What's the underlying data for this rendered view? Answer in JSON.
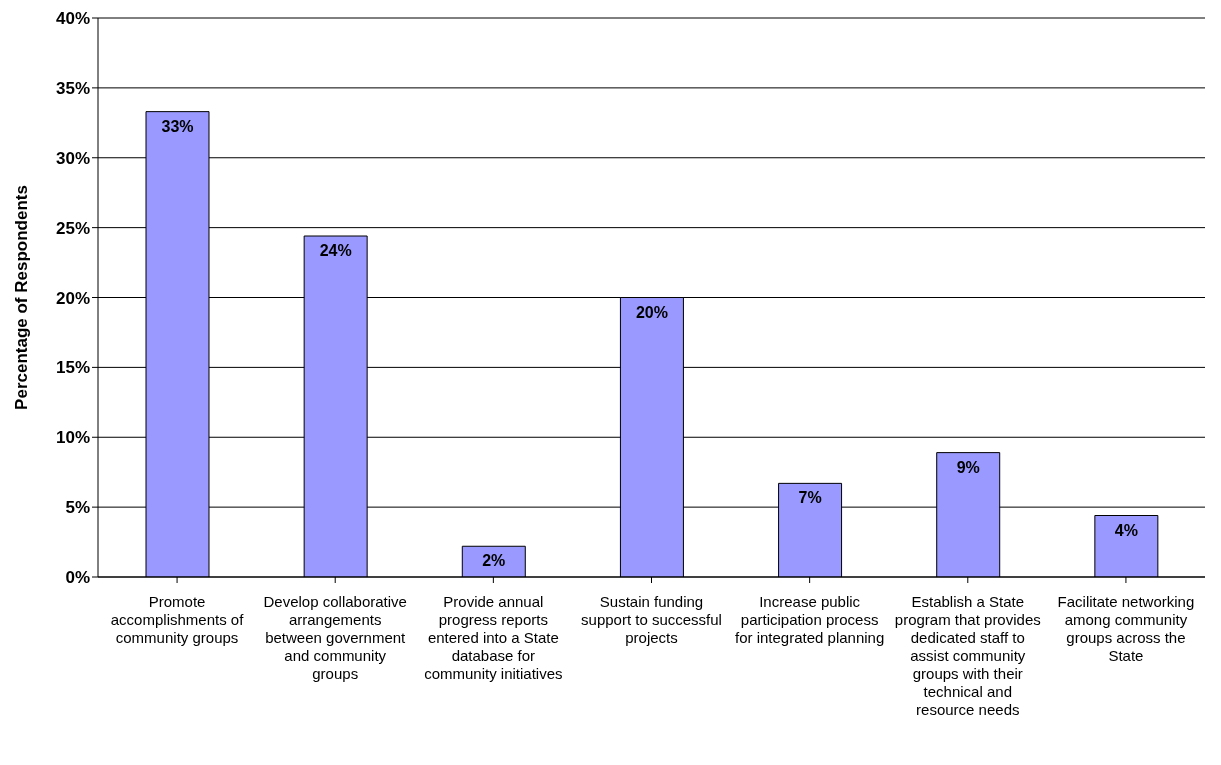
{
  "chart_data": {
    "type": "bar",
    "ylabel": "Percentage of Respondents",
    "categories": [
      "Promote accomplishments of community groups",
      "Develop collaborative arrangements between government and community groups",
      "Provide annual progress reports entered into a State database for community initiatives",
      "Sustain funding support to successful projects",
      "Increase public participation process for integrated planning",
      "Establish a State program that provides dedicated staff to assist community groups with their technical and resource needs",
      "Facilitate networking among community groups across the State"
    ],
    "values": [
      33.3,
      24.4,
      2.2,
      20,
      6.7,
      8.9,
      4.4
    ],
    "value_labels": [
      "33%",
      "24%",
      "2%",
      "20%",
      "7%",
      "9%",
      "4%"
    ],
    "color": "#9999ff",
    "ylim": [
      0,
      40
    ],
    "yticks": [
      {
        "value": 0,
        "label": "0%"
      },
      {
        "value": 5,
        "label": "5%"
      },
      {
        "value": 10,
        "label": "10%"
      },
      {
        "value": 15,
        "label": "15%"
      },
      {
        "value": 20,
        "label": "20%"
      },
      {
        "value": 25,
        "label": "25%"
      },
      {
        "value": 30,
        "label": "30%"
      },
      {
        "value": 35,
        "label": "35%"
      },
      {
        "value": 40,
        "label": "40%"
      }
    ],
    "grid": "y"
  }
}
